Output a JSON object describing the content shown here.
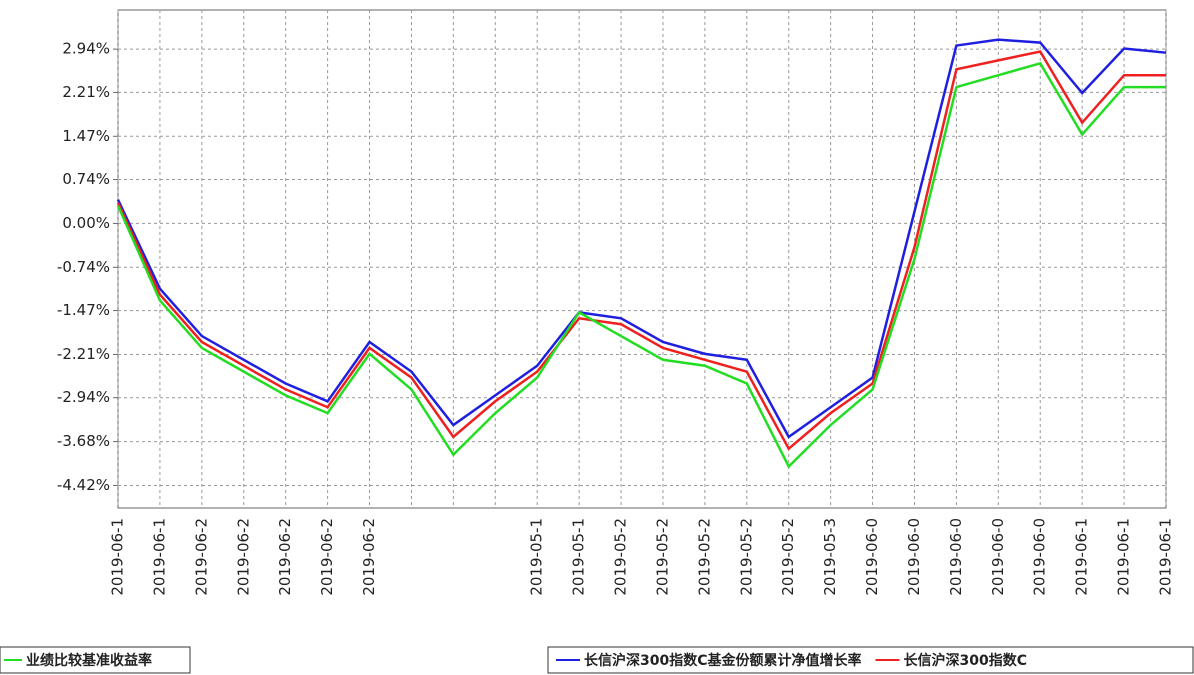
{
  "chart_data": {
    "type": "line",
    "categories": [
      "2019-06-1",
      "2019-06-1",
      "2019-06-2",
      "2019-06-2",
      "2019-06-2",
      "2019-06-2",
      "2019-06-2",
      null,
      null,
      null,
      "2019-05-1",
      "2019-05-1",
      "2019-05-2",
      "2019-05-2",
      "2019-05-2",
      "2019-05-2",
      "2019-05-2",
      "2019-05-3",
      "2019-06-0",
      "2019-06-0",
      "2019-06-0",
      "2019-06-0",
      "2019-06-0",
      "2019-06-1",
      "2019-06-1",
      "2019-06-1"
    ],
    "series": [
      {
        "name": "长信沪深300指数C基金份额累计净值增长率",
        "color": "#1f1fe0",
        "values": [
          0.4,
          -1.1,
          -1.9,
          -2.3,
          -2.7,
          -3.0,
          -2.0,
          -2.5,
          -3.4,
          -2.9,
          -2.4,
          -1.5,
          -1.6,
          -2.0,
          -2.2,
          -2.3,
          -3.6,
          -3.1,
          -2.6,
          0.2,
          3.0,
          3.1,
          3.05,
          2.2,
          2.95,
          2.88
        ]
      },
      {
        "name": "长信沪深300指数C",
        "color": "#ee2020",
        "values": [
          0.35,
          -1.2,
          -2.0,
          -2.4,
          -2.8,
          -3.1,
          -2.1,
          -2.6,
          -3.6,
          -3.0,
          -2.5,
          -1.6,
          -1.7,
          -2.1,
          -2.3,
          -2.5,
          -3.8,
          -3.2,
          -2.7,
          -0.4,
          2.6,
          2.75,
          2.9,
          1.7,
          2.5,
          2.5
        ]
      },
      {
        "name": "业绩比较基准收益率",
        "color": "#22dd22",
        "values": [
          0.3,
          -1.3,
          -2.1,
          -2.5,
          -2.9,
          -3.2,
          -2.2,
          -2.8,
          -3.9,
          -3.2,
          -2.6,
          -1.5,
          -1.9,
          -2.3,
          -2.4,
          -2.7,
          -4.1,
          -3.4,
          -2.8,
          -0.6,
          2.3,
          2.5,
          2.7,
          1.5,
          2.3,
          2.3
        ]
      }
    ],
    "ylim": [
      -4.8,
      3.6
    ],
    "yticks": [
      {
        "value": -4.42,
        "label": "-4.42%"
      },
      {
        "value": -3.68,
        "label": "-3.68%"
      },
      {
        "value": -2.94,
        "label": "-2.94%"
      },
      {
        "value": -2.21,
        "label": "-2.21%"
      },
      {
        "value": -1.47,
        "label": "-1.47%"
      },
      {
        "value": -0.74,
        "label": "-0.74%"
      },
      {
        "value": 0.0,
        "label": "0.00%"
      },
      {
        "value": 0.74,
        "label": "0.74%"
      },
      {
        "value": 1.47,
        "label": "1.47%"
      },
      {
        "value": 2.21,
        "label": "2.21%"
      },
      {
        "value": 2.94,
        "label": "2.94%"
      }
    ],
    "grid": true
  }
}
